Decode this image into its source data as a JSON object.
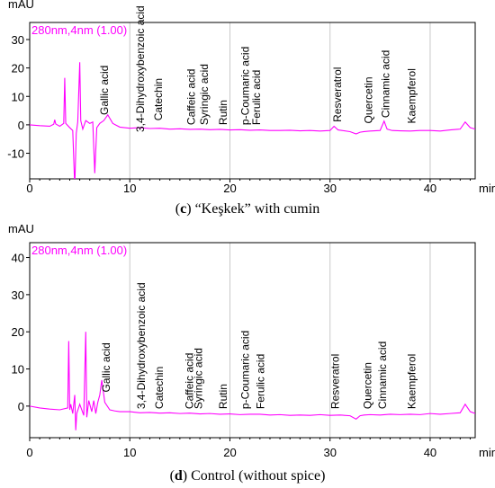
{
  "chart_data": [
    {
      "type": "line",
      "unit_label": "mAU",
      "x_unit_label": "min",
      "detector_label": "280nm,4nm (1.00)",
      "caption_letter": "c",
      "caption_text": "“Keşkek” with cumin",
      "xlim": [
        0,
        44.5
      ],
      "ylim": [
        -19,
        36
      ],
      "x_ticks": [
        0,
        10,
        20,
        30,
        40
      ],
      "y_ticks": [
        -10,
        0,
        10,
        20,
        30
      ],
      "color": "#ff00ff",
      "series": [
        {
          "x": [
            0,
            1,
            2,
            2.4,
            2.5,
            2.6,
            3,
            3.4,
            3.5,
            3.6,
            4,
            4.3,
            4.5,
            4.65,
            4.8,
            5.0,
            5.1,
            5.3,
            5.6,
            6.0,
            6.3,
            6.5,
            6.7,
            7.0,
            7.4,
            7.8,
            8.3,
            9,
            10,
            11,
            12,
            13,
            14,
            15,
            16,
            17,
            18,
            19,
            20,
            21,
            22,
            23,
            24,
            25,
            26,
            27,
            28,
            29,
            30,
            30.4,
            30.8,
            31.2,
            32,
            32.6,
            33.0,
            33.4,
            34,
            35,
            35.4,
            35.7,
            36.2,
            37,
            38,
            39,
            40,
            41,
            42,
            43,
            43.5,
            44,
            44.5
          ],
          "y": [
            0,
            -0.3,
            -0.5,
            0.2,
            1.8,
            0.3,
            -0.5,
            0.5,
            16.5,
            0.5,
            -1.0,
            -2.0,
            -22,
            -3.0,
            1.0,
            22,
            1.5,
            -1.5,
            1.5,
            0.5,
            1.0,
            -17,
            -1.0,
            0.5,
            1.5,
            3.5,
            0.5,
            -0.8,
            -1.2,
            -1.0,
            -1.3,
            -1.2,
            -1.5,
            -1.4,
            -1.6,
            -1.5,
            -1.7,
            -1.6,
            -1.8,
            -1.7,
            -1.9,
            -1.8,
            -2.0,
            -2.0,
            -1.9,
            -2.1,
            -2.0,
            -2.2,
            -2.0,
            -0.5,
            -1.8,
            -2.0,
            -2.4,
            -3.2,
            -2.6,
            -2.4,
            -2.2,
            -2.0,
            1.3,
            -1.5,
            -2.0,
            -2.1,
            -2.2,
            -2.0,
            -2.0,
            -2.2,
            -1.8,
            -1.5,
            1.0,
            -1.0,
            -1.5
          ]
        }
      ],
      "annotations": [
        {
          "label": "Gallic acid",
          "x": 7.8,
          "y": 2.5
        },
        {
          "label": "3,4-Dihydroxybenzoic acid",
          "x": 11.4,
          "y": -3.5
        },
        {
          "label": "Catechin",
          "x": 13.2,
          "y": 0.5
        },
        {
          "label": "Caffeic acid",
          "x": 16.5,
          "y": -1.0
        },
        {
          "label": "Syringic acid",
          "x": 17.8,
          "y": -1.0
        },
        {
          "label": "Rutin",
          "x": 19.7,
          "y": -1.0
        },
        {
          "label": "p-Coumaric acid",
          "x": 21.9,
          "y": -1.0
        },
        {
          "label": "Ferulic acid",
          "x": 23.0,
          "y": -1.0
        },
        {
          "label": "Resveratrol",
          "x": 31.1,
          "y": 0.0
        },
        {
          "label": "Quercetin",
          "x": 34.2,
          "y": -0.5
        },
        {
          "label": "Cinnamic acid",
          "x": 35.9,
          "y": 1.5
        },
        {
          "label": "Kaempferol",
          "x": 38.5,
          "y": -0.5
        }
      ]
    },
    {
      "type": "line",
      "unit_label": "mAU",
      "x_unit_label": "min",
      "detector_label": "280nm,4nm (1.00)",
      "caption_letter": "d",
      "caption_text": "Control (without spice)",
      "xlim": [
        0,
        44.5
      ],
      "ylim": [
        -8.5,
        44
      ],
      "x_ticks": [
        0,
        10,
        20,
        30,
        40
      ],
      "y_ticks": [
        0,
        10,
        20,
        30,
        40
      ],
      "color": "#ff00ff",
      "series": [
        {
          "x": [
            0,
            1,
            2,
            3,
            3.8,
            3.9,
            4.0,
            4.1,
            4.3,
            4.5,
            4.6,
            4.7,
            5.0,
            5.4,
            5.6,
            5.7,
            5.9,
            6.2,
            6.4,
            6.6,
            6.8,
            7.0,
            7.2,
            7.5,
            8.0,
            8.5,
            9,
            10,
            11,
            12,
            13,
            14,
            15,
            16,
            17,
            18,
            19,
            20,
            21,
            22,
            23,
            24,
            25,
            26,
            27,
            28,
            29,
            30,
            31,
            32,
            32.6,
            33.0,
            33.4,
            34,
            35,
            36,
            37,
            38,
            39,
            40,
            41,
            42,
            43,
            43.5,
            44,
            44.5
          ],
          "y": [
            0,
            -0.5,
            -0.8,
            -1.0,
            -0.5,
            17.5,
            -1.0,
            0.5,
            -2.0,
            3.0,
            -6.5,
            -2.0,
            0.5,
            -2.5,
            20,
            -3.0,
            1.5,
            -1.5,
            1.5,
            -2.0,
            1.0,
            3.0,
            7.0,
            1.0,
            -1.0,
            -1.3,
            -1.5,
            -1.5,
            -1.8,
            -1.7,
            -1.9,
            -1.8,
            -2.0,
            -1.9,
            -2.1,
            -2.0,
            -2.2,
            -2.1,
            -2.3,
            -2.2,
            -2.2,
            -2.4,
            -2.3,
            -2.5,
            -2.4,
            -2.5,
            -2.3,
            -2.5,
            -2.4,
            -2.6,
            -3.5,
            -2.6,
            -2.4,
            -2.3,
            -2.4,
            -2.2,
            -2.3,
            -2.2,
            -2.3,
            -2.0,
            -2.2,
            -2.0,
            -1.8,
            0.5,
            -1.5,
            -2.0
          ]
        }
      ],
      "annotations": [
        {
          "label": "Gallic acid",
          "x": 8.0,
          "y": 3.0
        },
        {
          "label": "3,4-Dihydroxybenzoic acid",
          "x": 11.5,
          "y": -1.5
        },
        {
          "label": "Catechin",
          "x": 13.3,
          "y": -1.5
        },
        {
          "label": "Caffeic acid",
          "x": 16.3,
          "y": -1.5
        },
        {
          "label": "Syringic acid",
          "x": 17.2,
          "y": -1.5
        },
        {
          "label": "Rutin",
          "x": 19.7,
          "y": -1.5
        },
        {
          "label": "p-Coumaric acid",
          "x": 21.9,
          "y": -1.5
        },
        {
          "label": "Ferulic acid",
          "x": 23.4,
          "y": -1.5
        },
        {
          "label": "Resveratrol",
          "x": 30.9,
          "y": -1.5
        },
        {
          "label": "Quercetin",
          "x": 34.1,
          "y": -1.5
        },
        {
          "label": "Cinnamic acid",
          "x": 35.6,
          "y": -1.5
        },
        {
          "label": "Kaempferol",
          "x": 38.5,
          "y": -1.5
        }
      ]
    }
  ]
}
